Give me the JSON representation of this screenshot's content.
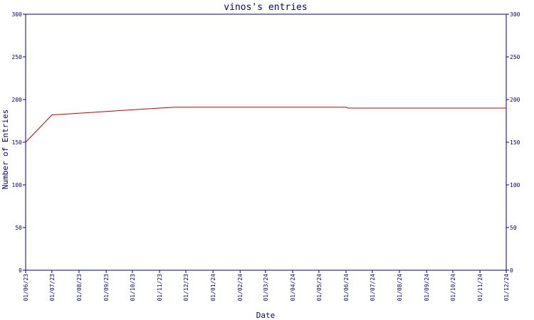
{
  "chart_data": {
    "type": "line",
    "title": "vinos's entries",
    "xlabel": "Date",
    "ylabel": "Number of Entries",
    "ylim": [
      0,
      300
    ],
    "yticks": [
      0,
      50,
      100,
      150,
      200,
      250,
      300
    ],
    "secondary_y_axis": true,
    "grid": false,
    "x_tick_labels": [
      "01/06/23",
      "01/07/23",
      "01/08/23",
      "01/09/23",
      "01/10/23",
      "01/11/23",
      "01/12/23",
      "01/01/24",
      "01/02/24",
      "01/03/24",
      "01/04/24",
      "01/05/24",
      "01/06/24",
      "01/07/24",
      "01/08/24",
      "01/09/24",
      "01/10/24",
      "01/11/24",
      "01/12/24"
    ],
    "series": [
      {
        "color": "#cc0000",
        "points": [
          {
            "x": "2023-06-01",
            "y": 150
          },
          {
            "x": "2023-07-01",
            "y": 182
          },
          {
            "x": "2023-08-01",
            "y": 184
          },
          {
            "x": "2023-09-01",
            "y": 186
          },
          {
            "x": "2023-10-01",
            "y": 188
          },
          {
            "x": "2023-11-01",
            "y": 190
          },
          {
            "x": "2023-11-20",
            "y": 191
          },
          {
            "x": "2024-06-01",
            "y": 191
          },
          {
            "x": "2024-06-03",
            "y": 190
          },
          {
            "x": "2024-12-01",
            "y": 190
          }
        ]
      }
    ]
  }
}
